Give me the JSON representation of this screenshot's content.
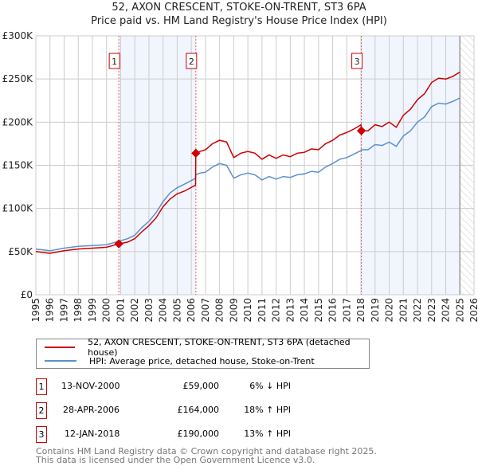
{
  "chart_data": {
    "type": "line",
    "title": "52, AXON CRESCENT, STOKE-ON-TRENT, ST3 6PA",
    "subtitle": "Price paid vs. HM Land Registry's House Price Index (HPI)",
    "xlim": [
      1995,
      2026
    ],
    "ylim": [
      0,
      300000
    ],
    "x_ticks": [
      "1995",
      "1996",
      "1997",
      "1998",
      "1999",
      "2000",
      "2001",
      "2002",
      "2003",
      "2004",
      "2005",
      "2006",
      "2007",
      "2008",
      "2009",
      "2010",
      "2011",
      "2012",
      "2013",
      "2014",
      "2015",
      "2016",
      "2017",
      "2018",
      "2019",
      "2020",
      "2021",
      "2022",
      "2023",
      "2024",
      "2025",
      "2026"
    ],
    "y_ticks": [
      {
        "v": 0,
        "label": "£0"
      },
      {
        "v": 50000,
        "label": "£50K"
      },
      {
        "v": 100000,
        "label": "£100K"
      },
      {
        "v": 150000,
        "label": "£150K"
      },
      {
        "v": 200000,
        "label": "£200K"
      },
      {
        "v": 250000,
        "label": "£250K"
      },
      {
        "v": 300000,
        "label": "£300K"
      }
    ],
    "grid": true,
    "x": [
      1995,
      1996,
      1997,
      1998,
      1999,
      2000,
      2000.87,
      2001.5,
      2002,
      2002.5,
      2003,
      2003.5,
      2004,
      2004.5,
      2005,
      2005.5,
      2006.3,
      2006.32,
      2006.6,
      2007,
      2007.5,
      2008,
      2008.5,
      2009,
      2009.5,
      2010,
      2010.5,
      2011,
      2011.5,
      2012,
      2012.5,
      2013,
      2013.5,
      2014,
      2014.5,
      2015,
      2015.5,
      2016,
      2016.5,
      2017,
      2017.5,
      2018.0,
      2018.03,
      2018.5,
      2019,
      2019.5,
      2020,
      2020.5,
      2021,
      2021.5,
      2022,
      2022.5,
      2023,
      2023.5,
      2024,
      2024.5,
      2025
    ],
    "series": [
      {
        "name": "52, AXON CRESCENT, STOKE-ON-TRENT, ST3 6PA (detached house)",
        "color": "#cc0000",
        "values": [
          50,
          48,
          51,
          53,
          54,
          55,
          59,
          61,
          65,
          73,
          80,
          89,
          102,
          111,
          117,
          120,
          127,
          164,
          166,
          168,
          175,
          179,
          177,
          159,
          164,
          166,
          164,
          157,
          162,
          158,
          162,
          160,
          164,
          165,
          169,
          168,
          175,
          179,
          185,
          188,
          192,
          197,
          190,
          190,
          197,
          195,
          200,
          194,
          208,
          215,
          226,
          233,
          246,
          251,
          250,
          253,
          258
        ],
        "unit": "£K"
      },
      {
        "name": "HPI: Average price, detached house, Stoke-on-Trent",
        "color": "#5b8fd0",
        "values": [
          53,
          51,
          54,
          56,
          57,
          58,
          62,
          65,
          69,
          78,
          85,
          95,
          108,
          118,
          124,
          128,
          135,
          139,
          141,
          142,
          148,
          152,
          150,
          135,
          139,
          141,
          139,
          133,
          137,
          134,
          137,
          136,
          139,
          140,
          143,
          142,
          148,
          152,
          157,
          159,
          163,
          167,
          168,
          168,
          174,
          173,
          177,
          172,
          184,
          190,
          200,
          206,
          218,
          222,
          221,
          224,
          228
        ],
        "unit": "£K"
      }
    ],
    "sales": [
      {
        "label": "1",
        "x": 2000.87,
        "value": 59000,
        "date": "13-NOV-2000",
        "price": "£59,000",
        "hpi": "6% ↓ HPI"
      },
      {
        "label": "2",
        "x": 2006.32,
        "value": 164000,
        "date": "28-APR-2006",
        "price": "£164,000",
        "hpi": "18% ↑ HPI"
      },
      {
        "label": "3",
        "x": 2018.03,
        "value": 190000,
        "date": "12-JAN-2018",
        "price": "£190,000",
        "hpi": "13% ↑ HPI"
      }
    ],
    "shaded_ranges": [
      [
        2000.87,
        2006.32
      ],
      [
        2018.03,
        2025.0
      ]
    ],
    "hatched_from": 2025.0,
    "legend_placement": "below"
  },
  "footer": {
    "line1": "Contains HM Land Registry data © Crown copyright and database right 2025.",
    "line2": "This data is licensed under the Open Government Licence v3.0."
  }
}
